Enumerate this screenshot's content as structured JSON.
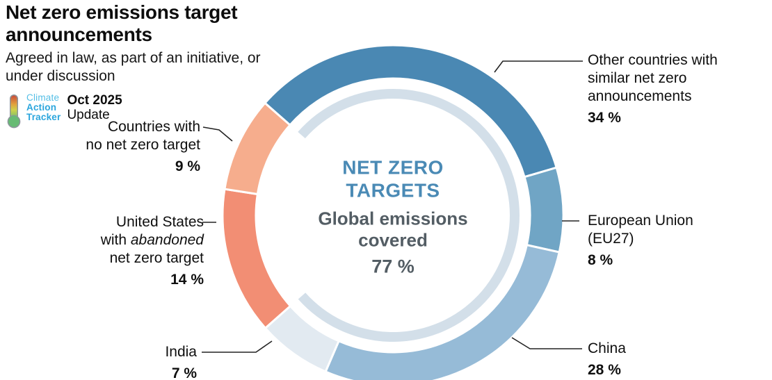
{
  "header": {
    "title": "Net zero emissions target announcements",
    "subtitle_line1": "Agreed in law, as part of an initiative, or",
    "subtitle_line2": "under discussion",
    "logo": {
      "brand_line1": "Climate",
      "brand_line2": "Action",
      "brand_line3": "Tracker",
      "date": "Oct 2025",
      "update": "Update",
      "brand_color": "#2ba6dd"
    }
  },
  "chart_data": {
    "type": "pie",
    "variant": "donut",
    "title": "NET ZERO TARGETS",
    "center_label_line1": "NET ZERO",
    "center_label_line2": "TARGETS",
    "center_sublabel_line1": "Global emissions",
    "center_sublabel_line2": "covered",
    "center_value": "77 %",
    "start_angle_deg": -48.7,
    "legend_position": "around",
    "segments": [
      {
        "id": "other-countries",
        "name": "Other countries with similar net zero announcements",
        "value": 34,
        "pct_label": "34 %",
        "color": "#4a88b3",
        "label_lines": [
          [
            {
              "t": "Other countries with"
            }
          ],
          [
            {
              "t": "similar net zero"
            }
          ],
          [
            {
              "t": "announcements"
            }
          ]
        ]
      },
      {
        "id": "european-union",
        "name": "European Union (EU27)",
        "value": 8,
        "pct_label": "8 %",
        "color": "#70a5c5",
        "label_lines": [
          [
            {
              "t": "European Union"
            }
          ],
          [
            {
              "t": "(EU27)"
            }
          ]
        ]
      },
      {
        "id": "china",
        "name": "China",
        "value": 28,
        "pct_label": "28 %",
        "color": "#96bbd7",
        "label_lines": [
          [
            {
              "t": "China"
            }
          ]
        ]
      },
      {
        "id": "india",
        "name": "India",
        "value": 7,
        "pct_label": "7 %",
        "color": "#e2eaf1",
        "label_lines": [
          [
            {
              "t": "India"
            }
          ]
        ]
      },
      {
        "id": "united-states",
        "name": "United States with abandoned net zero target",
        "value": 14,
        "pct_label": "14 %",
        "color": "#f28e74",
        "label_lines": [
          [
            {
              "t": "United States"
            }
          ],
          [
            {
              "t": "with "
            },
            {
              "t": "abandoned",
              "i": true
            }
          ],
          [
            {
              "t": "net zero target"
            }
          ]
        ]
      },
      {
        "id": "no-net-zero-target",
        "name": "Countries with no net zero target",
        "value": 9,
        "pct_label": "9 %",
        "color": "#f6ad8d",
        "label_lines": [
          [
            {
              "t": "Countries with"
            }
          ],
          [
            {
              "t": "no net zero target"
            }
          ]
        ]
      }
    ],
    "inner_arc": {
      "covers_percent": 77,
      "color": "#d3dfe9",
      "meaning": "Global emissions covered 77 %"
    },
    "colors": {
      "center_title": "#4a8ab5",
      "center_text": "#535d64",
      "leader_line": "#222222"
    }
  }
}
